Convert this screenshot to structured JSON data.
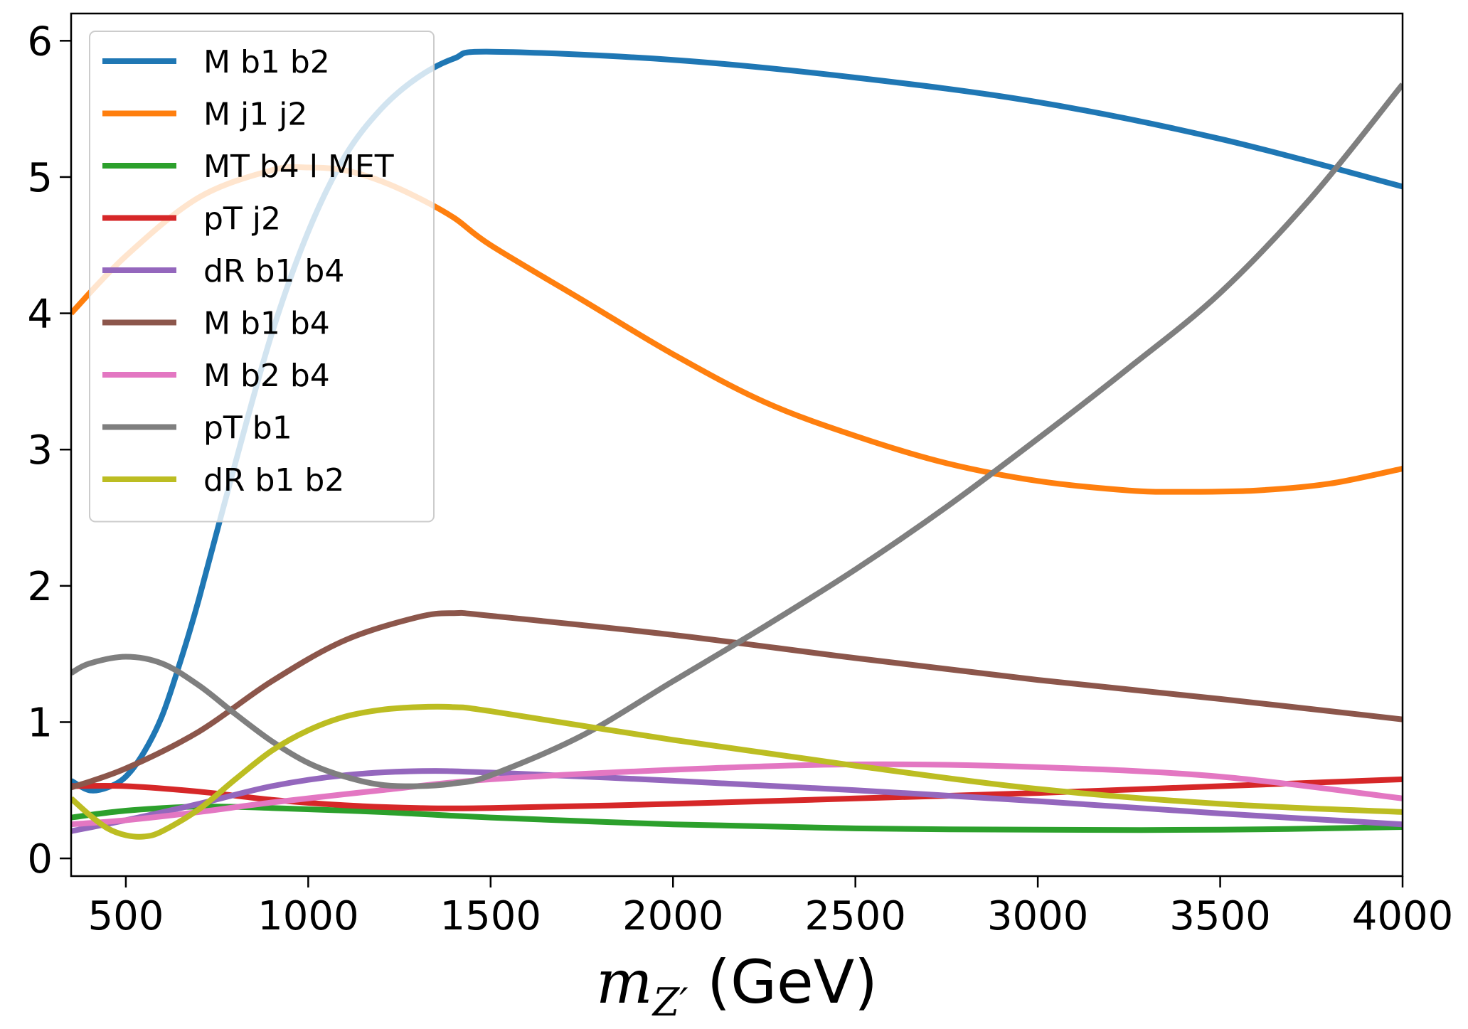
{
  "chart_data": {
    "type": "line",
    "xlabel": "m_{Z'} (GeV)",
    "xlabel_parts": {
      "main": "m",
      "sub": "Z′",
      "units": " (GeV)"
    },
    "ylabel": "",
    "xlim": [
      350,
      4000
    ],
    "ylim": [
      -0.13,
      6.2
    ],
    "xticks": [
      500,
      1000,
      1500,
      2000,
      2500,
      3000,
      3500,
      4000
    ],
    "yticks": [
      0,
      1,
      2,
      3,
      4,
      5,
      6
    ],
    "grid": false,
    "legend_position": "upper-left",
    "series": [
      {
        "name": "M b1 b2",
        "color": "#1f77b4",
        "x": [
          350,
          400,
          450,
          500,
          550,
          600,
          650,
          700,
          800,
          900,
          1000,
          1100,
          1200,
          1300,
          1400,
          1500,
          2000,
          2500,
          3000,
          3500,
          4000
        ],
        "y": [
          0.57,
          0.5,
          0.52,
          0.6,
          0.78,
          1.05,
          1.45,
          1.9,
          2.9,
          3.85,
          4.6,
          5.15,
          5.5,
          5.73,
          5.87,
          5.92,
          5.86,
          5.73,
          5.55,
          5.28,
          4.93
        ]
      },
      {
        "name": "M j1 j2",
        "color": "#ff7f0e",
        "x": [
          350,
          500,
          700,
          900,
          1000,
          1100,
          1200,
          1300,
          1400,
          1500,
          1750,
          2000,
          2250,
          2500,
          2750,
          3000,
          3250,
          3400,
          3600,
          3800,
          4000
        ],
        "y": [
          4.0,
          4.42,
          4.85,
          5.05,
          5.07,
          5.05,
          4.97,
          4.85,
          4.7,
          4.5,
          4.1,
          3.7,
          3.35,
          3.1,
          2.9,
          2.77,
          2.7,
          2.69,
          2.7,
          2.75,
          2.86
        ]
      },
      {
        "name": "MT b4 l MET",
        "color": "#2ca02c",
        "x": [
          350,
          500,
          700,
          900,
          1200,
          1500,
          2000,
          2500,
          3000,
          3500,
          4000
        ],
        "y": [
          0.3,
          0.35,
          0.38,
          0.37,
          0.34,
          0.3,
          0.25,
          0.22,
          0.21,
          0.21,
          0.23
        ]
      },
      {
        "name": "pT j2",
        "color": "#d62728",
        "x": [
          350,
          500,
          700,
          900,
          1100,
          1300,
          1500,
          2000,
          2500,
          3000,
          3500,
          4000
        ],
        "y": [
          0.53,
          0.53,
          0.49,
          0.43,
          0.39,
          0.37,
          0.37,
          0.4,
          0.44,
          0.48,
          0.53,
          0.58
        ]
      },
      {
        "name": "dR b1 b4",
        "color": "#9467bd",
        "x": [
          350,
          500,
          700,
          900,
          1100,
          1300,
          1500,
          2000,
          2500,
          3000,
          3500,
          4000
        ],
        "y": [
          0.2,
          0.28,
          0.4,
          0.53,
          0.61,
          0.64,
          0.63,
          0.57,
          0.5,
          0.42,
          0.33,
          0.25
        ]
      },
      {
        "name": "M b1 b4",
        "color": "#8c564b",
        "x": [
          350,
          500,
          700,
          900,
          1100,
          1300,
          1400,
          1500,
          2000,
          2500,
          3000,
          3500,
          4000
        ],
        "y": [
          0.52,
          0.66,
          0.93,
          1.3,
          1.6,
          1.77,
          1.8,
          1.78,
          1.64,
          1.47,
          1.31,
          1.17,
          1.02
        ]
      },
      {
        "name": "M b2 b4",
        "color": "#e377c2",
        "x": [
          350,
          500,
          700,
          900,
          1200,
          1500,
          2000,
          2500,
          3000,
          3500,
          4000
        ],
        "y": [
          0.25,
          0.28,
          0.34,
          0.41,
          0.5,
          0.58,
          0.65,
          0.69,
          0.67,
          0.6,
          0.44
        ]
      },
      {
        "name": "pT b1",
        "color": "#7f7f7f",
        "x": [
          350,
          400,
          500,
          600,
          700,
          800,
          900,
          1000,
          1100,
          1200,
          1300,
          1400,
          1500,
          1750,
          2000,
          2250,
          2500,
          2750,
          3000,
          3250,
          3500,
          3750,
          4000
        ],
        "y": [
          1.36,
          1.43,
          1.48,
          1.43,
          1.27,
          1.06,
          0.86,
          0.7,
          0.6,
          0.54,
          0.53,
          0.55,
          0.61,
          0.9,
          1.3,
          1.7,
          2.12,
          2.58,
          3.08,
          3.6,
          4.15,
          4.85,
          5.68
        ]
      },
      {
        "name": "dR b1 b2",
        "color": "#bcbd22",
        "x": [
          350,
          400,
          450,
          500,
          550,
          600,
          700,
          800,
          900,
          1000,
          1100,
          1200,
          1300,
          1400,
          1500,
          2000,
          2500,
          3000,
          3500,
          4000
        ],
        "y": [
          0.44,
          0.32,
          0.22,
          0.17,
          0.16,
          0.2,
          0.36,
          0.58,
          0.79,
          0.94,
          1.04,
          1.09,
          1.11,
          1.11,
          1.08,
          0.87,
          0.68,
          0.51,
          0.4,
          0.34
        ]
      }
    ]
  }
}
